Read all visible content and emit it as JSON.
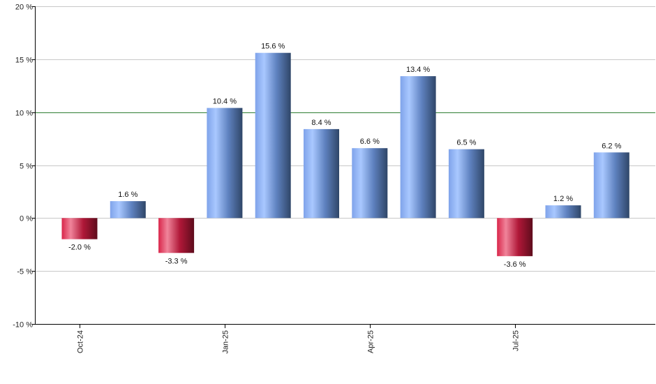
{
  "chart_data": {
    "type": "bar",
    "ylim": [
      -10,
      20
    ],
    "y_ticks": [
      {
        "value": 20,
        "label": "20 %"
      },
      {
        "value": 15,
        "label": "15 %"
      },
      {
        "value": 10,
        "label": "10 %"
      },
      {
        "value": 5,
        "label": "5 %"
      },
      {
        "value": 0,
        "label": "0 %"
      },
      {
        "value": -5,
        "label": "-5 %"
      },
      {
        "value": -10,
        "label": "-10 %"
      }
    ],
    "x_ticks": [
      {
        "index": 0,
        "label": "Oct-24"
      },
      {
        "index": 3,
        "label": "Jan-25"
      },
      {
        "index": 6,
        "label": "Apr-25"
      },
      {
        "index": 9,
        "label": "Jul-25"
      }
    ],
    "values": [
      -2.0,
      1.6,
      -3.3,
      10.4,
      15.6,
      8.4,
      6.6,
      13.4,
      6.5,
      -3.6,
      1.2,
      6.2
    ],
    "data_labels": [
      "-2.0 %",
      "1.6 %",
      "-3.3 %",
      "10.4 %",
      "15.6 %",
      "8.4 %",
      "6.6 %",
      "13.4 %",
      "6.5 %",
      "-3.6 %",
      "1.2 %",
      "6.2 %"
    ],
    "reference_line": 10,
    "grid": true,
    "colors": {
      "positive_light": "#a9c8ff",
      "positive_mid": "#6f97e0",
      "positive_dark": "#2f4668",
      "negative_light": "#f0849a",
      "negative_mid": "#d9264a",
      "negative_dark": "#6e1022",
      "reference_line": "#2e7d32",
      "grid": "#c8c8c8"
    }
  }
}
